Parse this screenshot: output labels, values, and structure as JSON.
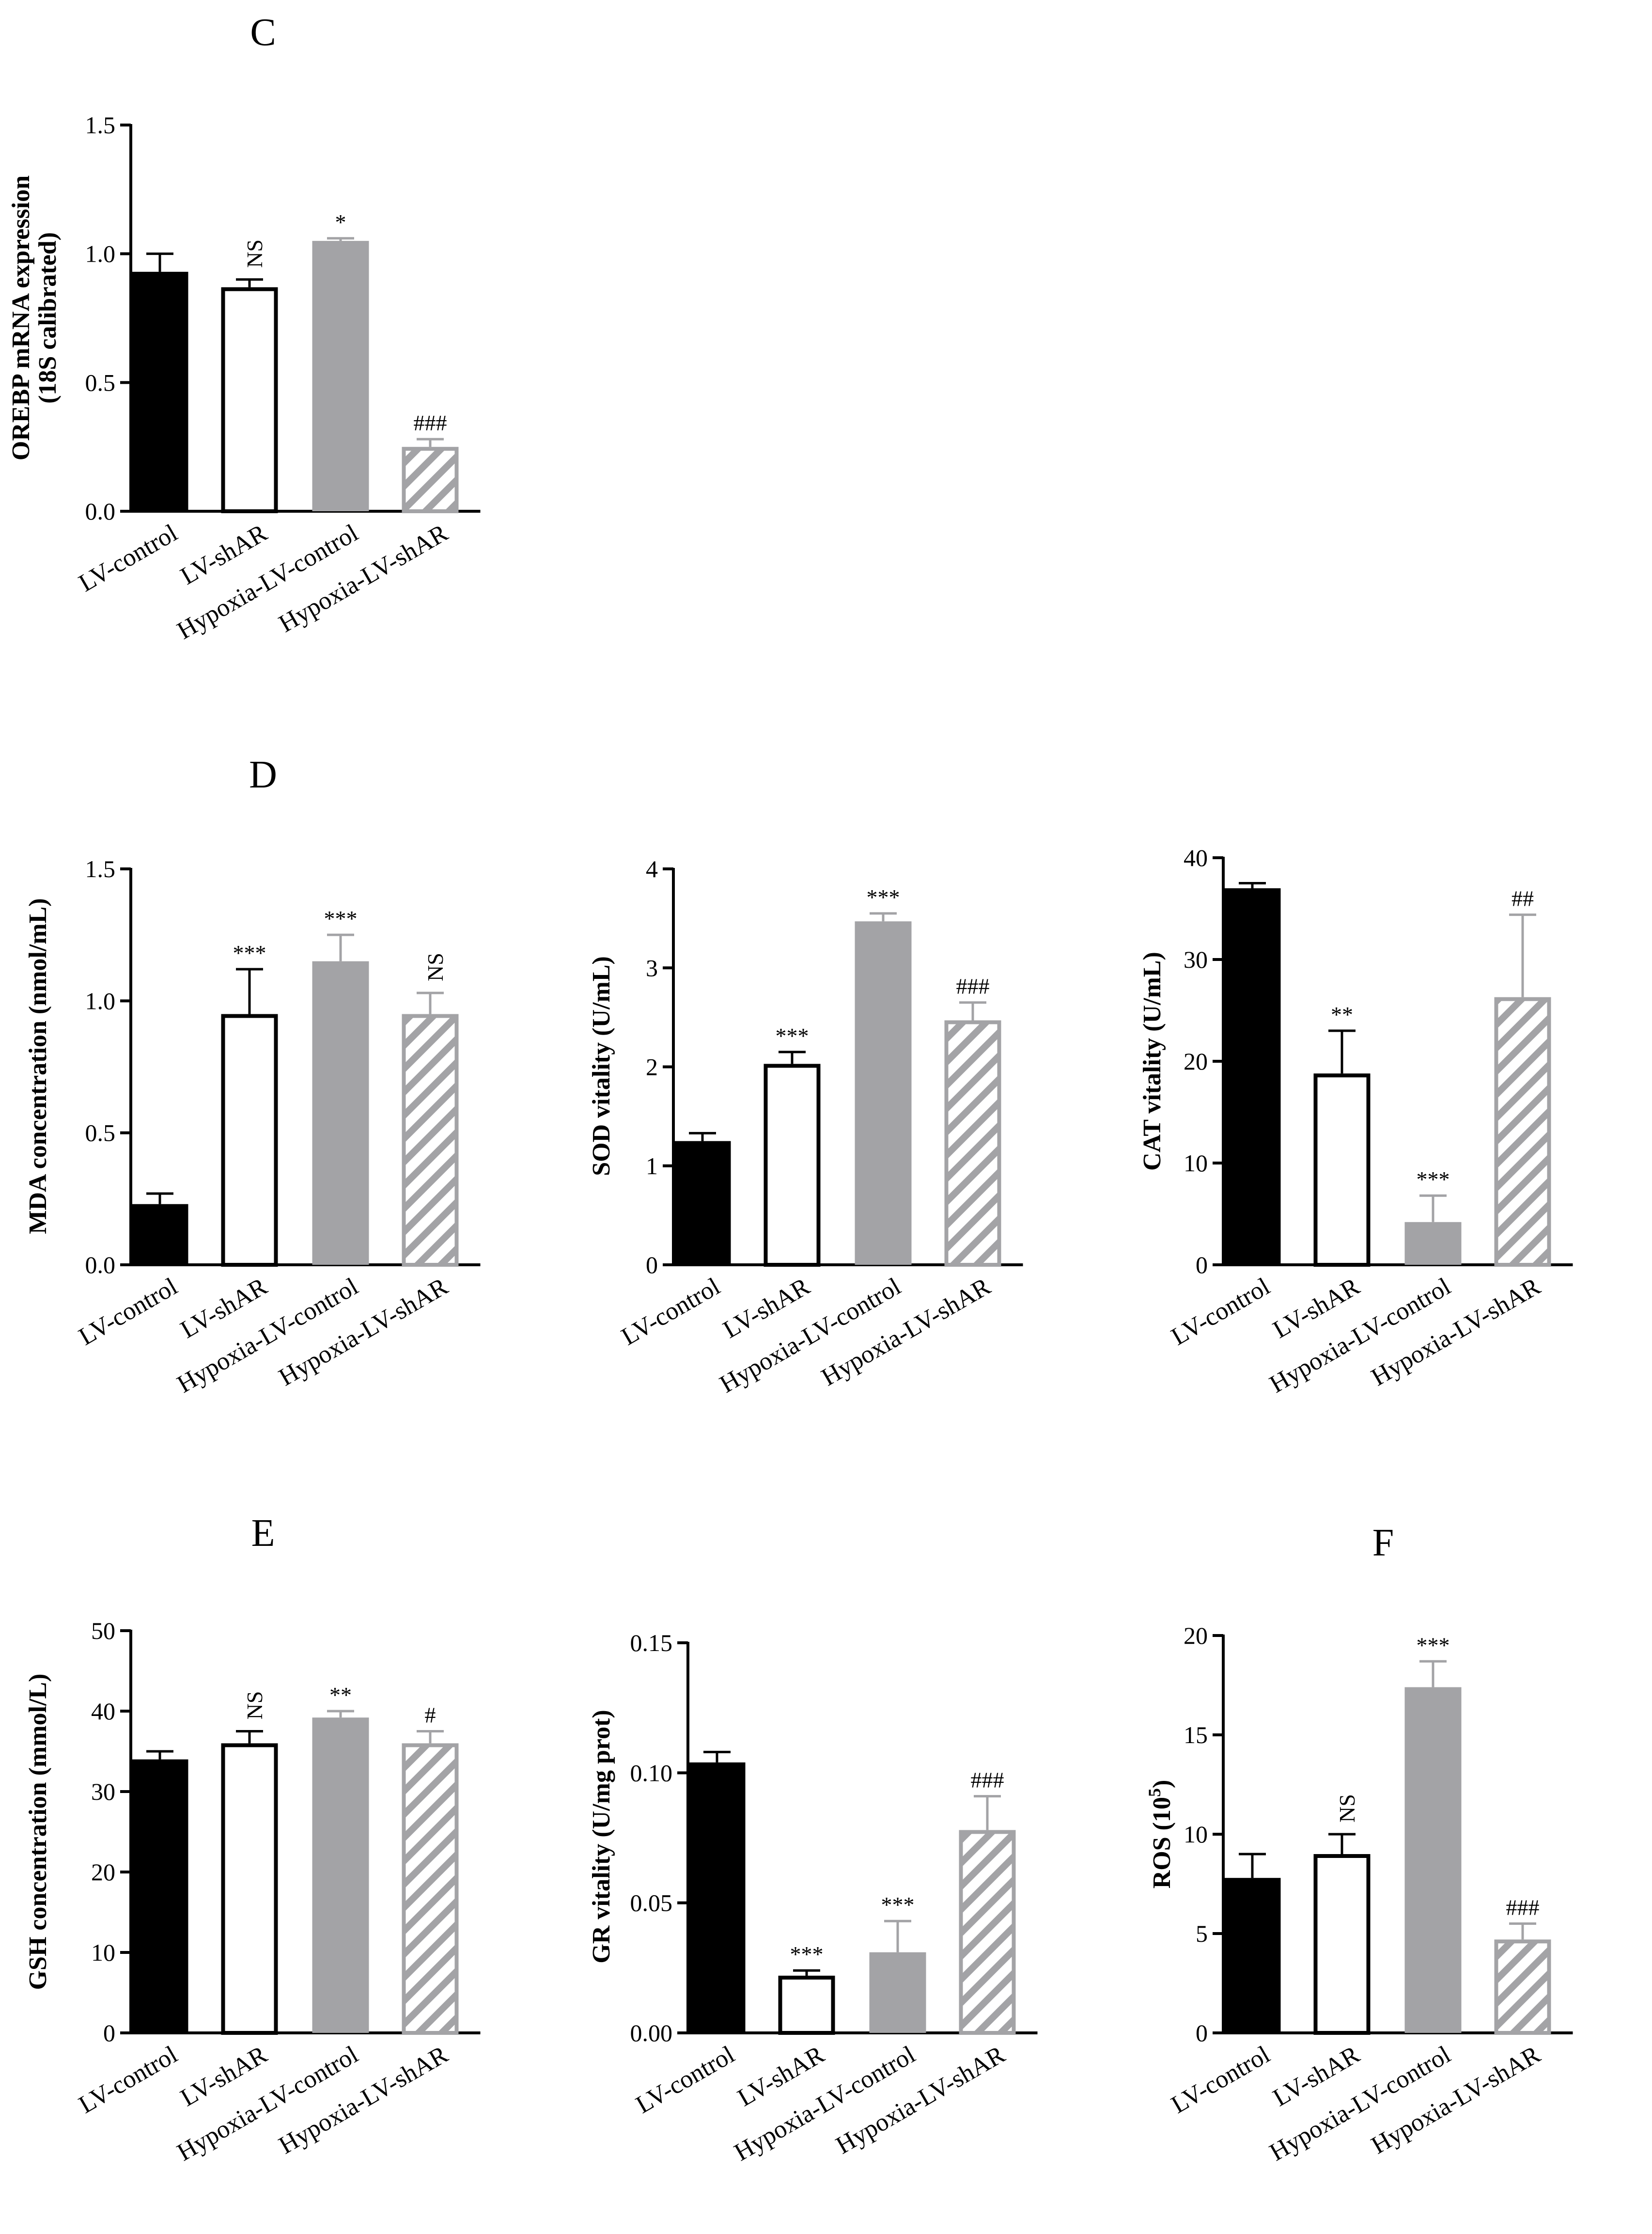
{
  "panel_letters": {
    "C": "C",
    "D": "D",
    "E": "E",
    "F": "F"
  },
  "colors": {
    "black_bar": "#000000",
    "white_bar": "#ffffff",
    "gray_bar": "#a3a3a6",
    "hatch_color": "#a3a3a6",
    "axis": "#000000"
  },
  "chart_data": [
    {
      "id": "orebp",
      "type": "bar",
      "panel_letter": "C",
      "title": "",
      "categories": [
        "LV-control",
        "LV-shAR",
        "Hypoxia-LV-control",
        "Hypoxia-LV-shAR"
      ],
      "values": [
        0.93,
        0.87,
        1.05,
        0.25
      ],
      "errors": [
        0.07,
        0.03,
        0.01,
        0.03
      ],
      "significance": [
        "",
        "NS",
        "*",
        "###"
      ],
      "ylabel_line1": "OREBP mRNA expression",
      "ylabel_line2": "(18S calibrated)",
      "ylim": [
        0,
        1.5
      ],
      "yticks": [
        0.0,
        0.5,
        1.0,
        1.5
      ],
      "ytick_labels": [
        "0.0",
        "0.5",
        "1.0",
        "1.5"
      ]
    },
    {
      "id": "mda",
      "type": "bar",
      "panel_letter": "D",
      "title": "",
      "categories": [
        "LV-control",
        "LV-shAR",
        "Hypoxia-LV-control",
        "Hypoxia-LV-shAR"
      ],
      "values": [
        0.23,
        0.95,
        1.15,
        0.95
      ],
      "errors": [
        0.04,
        0.17,
        0.1,
        0.08
      ],
      "significance": [
        "",
        "***",
        "***",
        "NS"
      ],
      "ylabel_line1": "MDA concentration (nmol/mL)",
      "ylim": [
        0,
        1.5
      ],
      "yticks": [
        0.0,
        0.5,
        1.0,
        1.5
      ],
      "ytick_labels": [
        "0.0",
        "0.5",
        "1.0",
        "1.5"
      ]
    },
    {
      "id": "sod",
      "type": "bar",
      "title": "",
      "categories": [
        "LV-control",
        "LV-shAR",
        "Hypoxia-LV-control",
        "Hypoxia-LV-shAR"
      ],
      "values": [
        1.25,
        2.03,
        3.47,
        2.47
      ],
      "errors": [
        0.08,
        0.12,
        0.08,
        0.18
      ],
      "significance": [
        "",
        "***",
        "***",
        "###"
      ],
      "ylabel_line1": "SOD vitality (U/mL)",
      "ylim": [
        0,
        4
      ],
      "yticks": [
        0,
        1,
        2,
        3,
        4
      ],
      "ytick_labels": [
        "0",
        "1",
        "2",
        "3",
        "4"
      ]
    },
    {
      "id": "cat",
      "type": "bar",
      "title": "",
      "categories": [
        "LV-control",
        "LV-shAR",
        "Hypoxia-LV-control",
        "Hypoxia-LV-shAR"
      ],
      "values": [
        37.0,
        18.8,
        4.2,
        26.3
      ],
      "errors": [
        0.5,
        4.2,
        2.6,
        8.1
      ],
      "significance": [
        "",
        "**",
        "***",
        "##"
      ],
      "ylabel_line1": "CAT vitality (U/mL)",
      "ylim": [
        0,
        40
      ],
      "yticks": [
        0,
        10,
        20,
        30,
        40
      ],
      "ytick_labels": [
        "0",
        "10",
        "20",
        "30",
        "40"
      ]
    },
    {
      "id": "gsh",
      "type": "bar",
      "panel_letter": "E",
      "title": "",
      "categories": [
        "LV-control",
        "LV-shAR",
        "Hypoxia-LV-control",
        "Hypoxia-LV-shAR"
      ],
      "values": [
        34.0,
        36.0,
        39.2,
        36.0
      ],
      "errors": [
        1.0,
        1.5,
        0.8,
        1.5
      ],
      "significance": [
        "",
        "NS",
        "**",
        "#"
      ],
      "ylabel_line1": "GSH concentration (mmol/L)",
      "ylim": [
        0,
        50
      ],
      "yticks": [
        0,
        10,
        20,
        30,
        40,
        50
      ],
      "ytick_labels": [
        "0",
        "10",
        "20",
        "30",
        "40",
        "50"
      ]
    },
    {
      "id": "gr",
      "type": "bar",
      "title": "",
      "categories": [
        "LV-control",
        "LV-shAR",
        "Hypoxia-LV-control",
        "Hypoxia-LV-shAR"
      ],
      "values": [
        0.104,
        0.022,
        0.031,
        0.078
      ],
      "errors": [
        0.004,
        0.002,
        0.012,
        0.013
      ],
      "significance": [
        "",
        "***",
        "***",
        "###"
      ],
      "ylabel_line1": "GR vitality (U/mg prot)",
      "ylim": [
        0,
        0.15
      ],
      "yticks": [
        0.0,
        0.05,
        0.1,
        0.15
      ],
      "ytick_labels": [
        "0.00",
        "0.05",
        "0.10",
        "0.15"
      ]
    },
    {
      "id": "ros",
      "type": "bar",
      "panel_letter": "F",
      "title": "",
      "categories": [
        "LV-control",
        "LV-shAR",
        "Hypoxia-LV-control",
        "Hypoxia-LV-shAR"
      ],
      "values": [
        7.8,
        9.0,
        17.4,
        4.7
      ],
      "errors": [
        1.2,
        1.0,
        1.3,
        0.8
      ],
      "significance": [
        "",
        "NS",
        "***",
        "###"
      ],
      "ylabel_line1": "ROS (10",
      "ylabel_sup": "5",
      "ylabel_line1_end": ")",
      "ylim": [
        0,
        20
      ],
      "yticks": [
        0,
        5,
        10,
        15,
        20
      ],
      "ytick_labels": [
        "0",
        "5",
        "10",
        "15",
        "20"
      ]
    }
  ]
}
